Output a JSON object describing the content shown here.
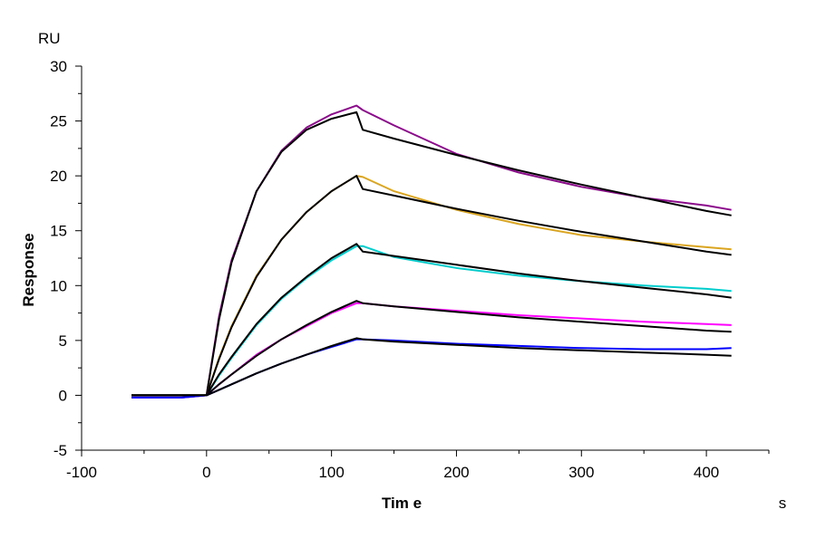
{
  "chart_data": {
    "type": "line",
    "title": "",
    "xlabel": "Tim e",
    "xunit": "s",
    "ylabel": "Response",
    "yunit": "RU",
    "xlim": [
      -100,
      450
    ],
    "ylim": [
      -5,
      30
    ],
    "xticks": [
      -100,
      0,
      100,
      200,
      300,
      400
    ],
    "yticks": [
      -5,
      0,
      5,
      10,
      15,
      20,
      25,
      30
    ],
    "grid": false,
    "legend": "none",
    "x": [
      -60,
      -40,
      -20,
      0,
      10,
      20,
      40,
      60,
      80,
      100,
      120,
      125,
      150,
      200,
      250,
      300,
      350,
      400,
      420
    ],
    "series": [
      {
        "kind": "measured",
        "color": "#8B0A8B",
        "values": [
          -0.2,
          -0.2,
          -0.2,
          0,
          7.2,
          12.3,
          18.6,
          22.3,
          24.4,
          25.6,
          26.4,
          26.0,
          24.6,
          22.0,
          20.3,
          19.0,
          18.0,
          17.3,
          16.9
        ]
      },
      {
        "kind": "fit",
        "color": "#000000",
        "values": [
          0,
          0,
          0,
          0,
          6.9,
          12.1,
          18.6,
          22.2,
          24.2,
          25.2,
          25.8,
          24.2,
          23.4,
          21.9,
          20.5,
          19.2,
          18.0,
          16.8,
          16.4
        ]
      },
      {
        "kind": "measured",
        "color": "#DAA520",
        "values": [
          -0.2,
          -0.2,
          -0.2,
          0,
          3.4,
          6.3,
          10.9,
          14.2,
          16.7,
          18.6,
          20.0,
          19.9,
          18.6,
          16.9,
          15.6,
          14.6,
          14.0,
          13.5,
          13.3
        ]
      },
      {
        "kind": "fit",
        "color": "#000000",
        "values": [
          0,
          0,
          0,
          0,
          3.3,
          6.2,
          10.8,
          14.2,
          16.7,
          18.6,
          20.0,
          18.8,
          18.2,
          17.0,
          15.9,
          14.9,
          14.0,
          13.1,
          12.8
        ]
      },
      {
        "kind": "measured",
        "color": "#00CCCC",
        "values": [
          -0.2,
          -0.2,
          -0.2,
          0,
          1.8,
          3.4,
          6.4,
          8.8,
          10.7,
          12.3,
          13.6,
          13.6,
          12.6,
          11.6,
          10.9,
          10.4,
          10.0,
          9.7,
          9.5
        ]
      },
      {
        "kind": "fit",
        "color": "#000000",
        "values": [
          0,
          0,
          0,
          0,
          1.9,
          3.5,
          6.5,
          8.9,
          10.8,
          12.5,
          13.8,
          13.1,
          12.7,
          11.9,
          11.1,
          10.4,
          9.8,
          9.2,
          8.9
        ]
      },
      {
        "kind": "measured",
        "color": "#FF00FF",
        "values": [
          -0.2,
          -0.2,
          -0.2,
          0,
          1.0,
          1.9,
          3.7,
          5.1,
          6.3,
          7.5,
          8.4,
          8.4,
          8.1,
          7.7,
          7.3,
          7.0,
          6.7,
          6.5,
          6.4
        ]
      },
      {
        "kind": "fit",
        "color": "#000000",
        "values": [
          0,
          0,
          0,
          0,
          1.0,
          1.9,
          3.6,
          5.1,
          6.4,
          7.6,
          8.6,
          8.4,
          8.1,
          7.6,
          7.1,
          6.7,
          6.3,
          5.9,
          5.8
        ]
      },
      {
        "kind": "measured",
        "color": "#0000FF",
        "values": [
          -0.2,
          -0.2,
          -0.2,
          0,
          0.5,
          1.0,
          2.0,
          2.9,
          3.7,
          4.4,
          5.1,
          5.1,
          5.0,
          4.7,
          4.5,
          4.3,
          4.2,
          4.2,
          4.3
        ]
      },
      {
        "kind": "fit",
        "color": "#000000",
        "values": [
          0,
          0,
          0,
          0,
          0.5,
          1.0,
          2.0,
          2.9,
          3.7,
          4.5,
          5.2,
          5.1,
          4.9,
          4.6,
          4.3,
          4.1,
          3.9,
          3.7,
          3.6
        ]
      }
    ]
  }
}
